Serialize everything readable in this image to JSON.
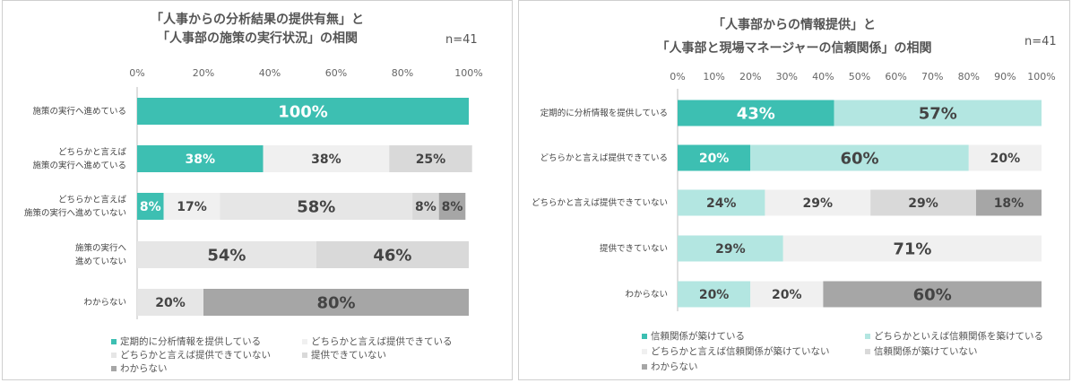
{
  "charts": [
    {
      "title_line1": "「人事からの分析結果の提供有無」と",
      "title_line2": "「人事部の施策の実行状況」の相関",
      "n_label": "n=41",
      "legend": [
        {
          "label": "定期的に分析情報を提供している",
          "color": "#3dbfb2"
        },
        {
          "label": "どちらかと言えば提供できている",
          "color": "#f0f0f0"
        },
        {
          "label": "どちらかと言えば提供できていない",
          "color": "#e6e6e6"
        },
        {
          "label": "提供できていない",
          "color": "#d9d9d9"
        },
        {
          "label": "わからない",
          "color": "#a6a6a6"
        }
      ]
    },
    {
      "title_line1": "「人事部からの情報提供」と",
      "title_line2": "「人事部と現場マネージャーの信頼関係」の相関",
      "n_label": "n=41",
      "legend": [
        {
          "label": "信頼関係が築けている",
          "color": "#3dbfb2"
        },
        {
          "label": "どちらかといえば信頼関係を築けている",
          "color": "#b3e6e1"
        },
        {
          "label": "どちらかと言えば信頼関係が築けていない",
          "color": "#f0f0f0"
        },
        {
          "label": "信頼関係が築けていない",
          "color": "#d9d9d9"
        },
        {
          "label": "わからない",
          "color": "#a6a6a6"
        }
      ]
    }
  ],
  "chart_data": [
    {
      "type": "bar",
      "orientation": "horizontal-stacked-100",
      "title": "「人事からの分析結果の提供有無」と「人事部の施策の実行状況」の相関",
      "xlim": [
        0,
        100
      ],
      "ticks": [
        "0%",
        "20%",
        "40%",
        "60%",
        "80%",
        "100%"
      ],
      "categories": [
        [
          "施策の実行へ進めている"
        ],
        [
          "どちらかと言えば",
          "施策の実行へ進めている"
        ],
        [
          "どちらかと言えば",
          "施策の実行へ進めていない"
        ],
        [
          "施策の実行へ",
          "進めていない"
        ],
        [
          "わからない"
        ]
      ],
      "series": [
        {
          "name": "定期的に分析情報を提供している",
          "color": "#3dbfb2",
          "text_color": "#ffffff",
          "values": [
            100,
            38,
            8,
            0,
            0
          ]
        },
        {
          "name": "どちらかと言えば提供できている",
          "color": "#f0f0f0",
          "text_color": "#444444",
          "values": [
            0,
            38,
            17,
            0,
            0
          ]
        },
        {
          "name": "どちらかと言えば提供できていない",
          "color": "#e6e6e6",
          "text_color": "#444444",
          "values": [
            0,
            0,
            58,
            54,
            20
          ]
        },
        {
          "name": "提供できていない",
          "color": "#d9d9d9",
          "text_color": "#444444",
          "values": [
            0,
            25,
            8,
            46,
            0
          ]
        },
        {
          "name": "わからない",
          "color": "#a6a6a6",
          "text_color": "#444444",
          "values": [
            0,
            0,
            8,
            0,
            80
          ]
        }
      ]
    },
    {
      "type": "bar",
      "orientation": "horizontal-stacked-100",
      "title": "「人事部からの情報提供」と「人事部と現場マネージャーの信頼関係」の相関",
      "xlim": [
        0,
        100
      ],
      "ticks": [
        "0%",
        "10%",
        "20%",
        "30%",
        "40%",
        "50%",
        "60%",
        "70%",
        "80%",
        "90%",
        "100%"
      ],
      "categories": [
        [
          "定期的に分析情報を提供している"
        ],
        [
          "どちらかと言えば提供できている"
        ],
        [
          "どちらかと言えば提供できていない"
        ],
        [
          "提供できていない"
        ],
        [
          "わからない"
        ]
      ],
      "series": [
        {
          "name": "信頼関係が築けている",
          "color": "#3dbfb2",
          "text_color": "#ffffff",
          "values": [
            43,
            20,
            0,
            0,
            0
          ]
        },
        {
          "name": "どちらかといえば信頼関係を築けている",
          "color": "#b3e6e1",
          "text_color": "#444444",
          "values": [
            57,
            60,
            24,
            29,
            20
          ]
        },
        {
          "name": "どちらかと言えば信頼関係が築けていない",
          "color": "#f0f0f0",
          "text_color": "#444444",
          "values": [
            0,
            20,
            29,
            71,
            20
          ]
        },
        {
          "name": "信頼関係が築けていない",
          "color": "#d9d9d9",
          "text_color": "#444444",
          "values": [
            0,
            0,
            29,
            0,
            0
          ]
        },
        {
          "name": "わからない",
          "color": "#a6a6a6",
          "text_color": "#444444",
          "values": [
            0,
            0,
            18,
            0,
            60
          ]
        }
      ]
    }
  ]
}
